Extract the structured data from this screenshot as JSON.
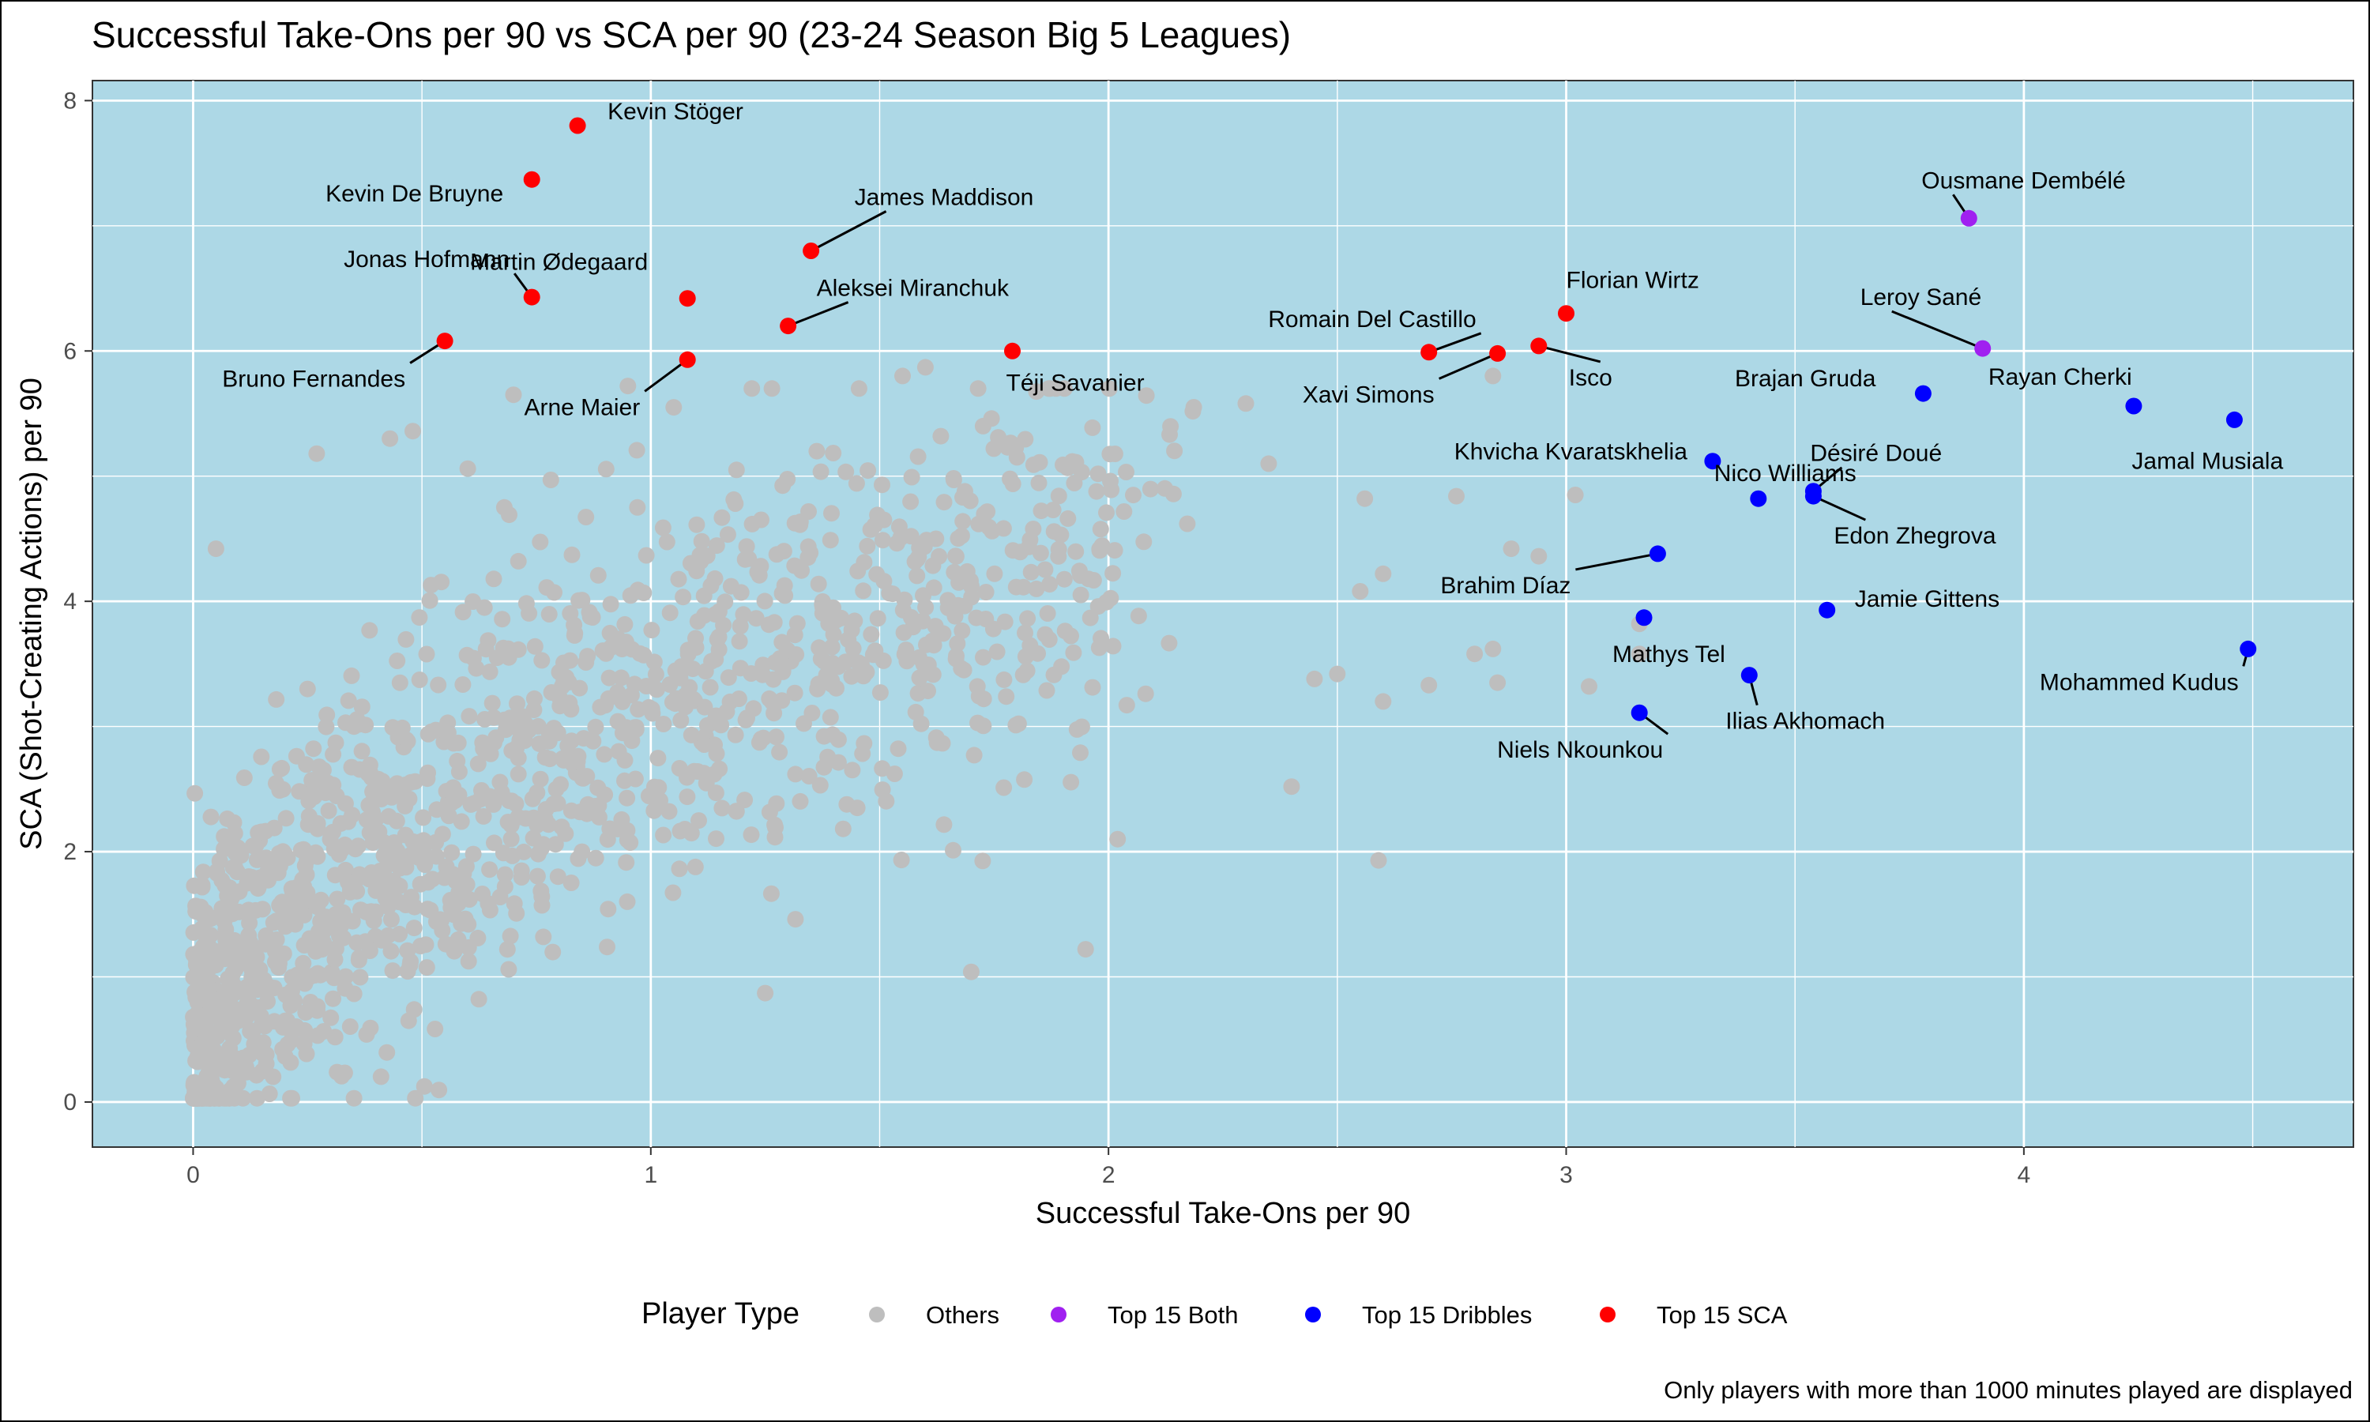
{
  "chart_data": {
    "type": "scatter",
    "title": "Successful Take-Ons per 90 vs SCA per 90 (23-24 Season Big 5 Leagues)",
    "xlabel": "Successful Take-Ons per 90",
    "ylabel": "SCA (Shot-Creating Actions) per 90",
    "caption": "Only players with more than 1000 minutes played are displayed",
    "xlim": [
      -0.22,
      4.72
    ],
    "ylim": [
      -0.36,
      8.16
    ],
    "x_ticks": [
      0,
      1,
      2,
      3,
      4
    ],
    "y_ticks": [
      0,
      2,
      4,
      6,
      8
    ],
    "grid": true,
    "panel_color": "#add8e6",
    "legend": {
      "position": "bottom",
      "title": "Player Type",
      "entries": [
        {
          "label": "Others",
          "color": "#bebebe"
        },
        {
          "label": "Top 15 Both",
          "color": "#a020f0"
        },
        {
          "label": "Top 15 Dribbles",
          "color": "#0000ff"
        },
        {
          "label": "Top 15 SCA",
          "color": "#ff0000"
        }
      ]
    },
    "others_seed": 20240601,
    "others_count": 1400,
    "others_fixed": [
      [
        0.05,
        4.42
      ],
      [
        0.27,
        5.18
      ],
      [
        0.43,
        5.3
      ],
      [
        0.48,
        5.36
      ],
      [
        0.6,
        5.06
      ],
      [
        0.68,
        4.75
      ],
      [
        0.7,
        5.65
      ],
      [
        0.95,
        5.72
      ],
      [
        1.05,
        5.55
      ],
      [
        1.55,
        5.8
      ],
      [
        1.6,
        5.87
      ],
      [
        1.8,
        5.15
      ],
      [
        2.3,
        5.58
      ],
      [
        2.35,
        5.1
      ],
      [
        2.56,
        4.82
      ],
      [
        2.6,
        4.22
      ],
      [
        2.76,
        4.84
      ],
      [
        2.8,
        3.58
      ],
      [
        2.84,
        3.62
      ],
      [
        2.85,
        3.35
      ],
      [
        2.88,
        4.42
      ],
      [
        2.94,
        4.36
      ],
      [
        3.02,
        4.85
      ],
      [
        3.05,
        3.32
      ],
      [
        3.16,
        3.82
      ],
      [
        3.16,
        3.58
      ],
      [
        2.84,
        5.8
      ],
      [
        2.6,
        3.2
      ],
      [
        2.59,
        1.93
      ],
      [
        1.95,
        1.22
      ],
      [
        1.7,
        1.04
      ],
      [
        1.25,
        0.87
      ],
      [
        2.02,
        2.1
      ],
      [
        2.4,
        2.52
      ],
      [
        2.45,
        3.38
      ],
      [
        2.5,
        3.42
      ],
      [
        2.55,
        4.08
      ],
      [
        2.7,
        3.33
      ],
      [
        0.25,
        3.3
      ],
      [
        0.52,
        4.13
      ]
    ],
    "series": [
      {
        "name": "Top 15 SCA",
        "color": "#ff0000",
        "points": [
          {
            "name": "Kevin Stöger",
            "x": 0.84,
            "y": 7.8
          },
          {
            "name": "Kevin De Bruyne",
            "x": 0.74,
            "y": 7.37
          },
          {
            "name": "James Maddison",
            "x": 1.35,
            "y": 6.8
          },
          {
            "name": "Jonas Hofmann",
            "x": 0.74,
            "y": 6.43
          },
          {
            "name": "Martin Ødegaard",
            "x": 1.08,
            "y": 6.42
          },
          {
            "name": "Florian Wirtz",
            "x": 3.0,
            "y": 6.3
          },
          {
            "name": "Aleksei Miranchuk",
            "x": 1.3,
            "y": 6.2
          },
          {
            "name": "Bruno Fernandes",
            "x": 0.55,
            "y": 6.08
          },
          {
            "name": "Isco",
            "x": 2.94,
            "y": 6.04
          },
          {
            "name": "Romain Del Castillo",
            "x": 2.7,
            "y": 5.99
          },
          {
            "name": "Téji Savanier",
            "x": 1.79,
            "y": 6.0
          },
          {
            "name": "Xavi Simons",
            "x": 2.85,
            "y": 5.98
          },
          {
            "name": "Arne Maier",
            "x": 1.08,
            "y": 5.93
          }
        ]
      },
      {
        "name": "Top 15 Both",
        "color": "#a020f0",
        "points": [
          {
            "name": "Ousmane Dembélé",
            "x": 3.88,
            "y": 7.06
          },
          {
            "name": "Leroy Sané",
            "x": 3.91,
            "y": 6.02
          }
        ]
      },
      {
        "name": "Top 15 Dribbles",
        "color": "#0000ff",
        "points": [
          {
            "name": "Brajan Gruda",
            "x": 3.78,
            "y": 5.66
          },
          {
            "name": "Rayan Cherki",
            "x": 4.24,
            "y": 5.56
          },
          {
            "name": "Jamal Musiala",
            "x": 4.46,
            "y": 5.45
          },
          {
            "name": "Khvicha Kvaratskhelia",
            "x": 3.32,
            "y": 5.12
          },
          {
            "name": "Désiré Doué",
            "x": 3.54,
            "y": 4.88
          },
          {
            "name": "Edon Zhegrova",
            "x": 3.54,
            "y": 4.84
          },
          {
            "name": "Nico Williams",
            "x": 3.42,
            "y": 4.82
          },
          {
            "name": "Brahim Díaz",
            "x": 3.2,
            "y": 4.38
          },
          {
            "name": "Jamie Gittens",
            "x": 3.57,
            "y": 3.93
          },
          {
            "name": "Mathys Tel",
            "x": 3.17,
            "y": 3.87
          },
          {
            "name": "Mohammed Kudus",
            "x": 4.49,
            "y": 3.62
          },
          {
            "name": "Ilias Akhomach",
            "x": 3.4,
            "y": 3.41
          },
          {
            "name": "Niels Nkounkou",
            "x": 3.16,
            "y": 3.11
          }
        ]
      }
    ]
  }
}
